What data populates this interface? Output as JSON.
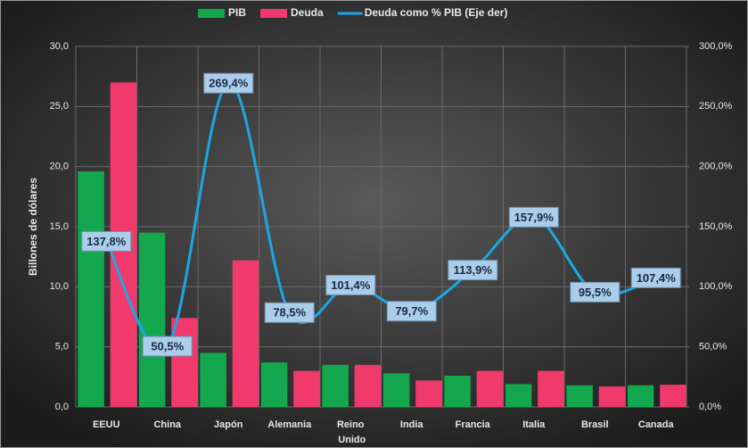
{
  "chart_data": {
    "type": "bar-line",
    "ylabel": "Billones de dólares",
    "categories": [
      "EEUU",
      "China",
      "Japón",
      "Alemania",
      "Reino Unido",
      "India",
      "Francia",
      "Italia",
      "Brasil",
      "Canada"
    ],
    "series": [
      {
        "name": "PIB",
        "color": "#13a84e",
        "values": [
          19.6,
          14.5,
          4.5,
          3.7,
          3.5,
          2.8,
          2.6,
          1.9,
          1.8,
          1.8
        ]
      },
      {
        "name": "Deuda",
        "color": "#f03a6c",
        "values": [
          27.0,
          7.4,
          12.2,
          3.0,
          3.5,
          2.2,
          3.0,
          3.0,
          1.7,
          1.85
        ]
      },
      {
        "name": "Deuda como % PIB (Eje der)",
        "color": "#1ba8e2",
        "axis": "y2",
        "type": "line",
        "values": [
          137.8,
          50.5,
          269.4,
          78.5,
          101.4,
          79.7,
          113.9,
          157.9,
          95.5,
          107.4
        ],
        "value_labels": [
          "137,8%",
          "50,5%",
          "269,4%",
          "78,5%",
          "101,4%",
          "79,7%",
          "113,9%",
          "157,9%",
          "95,5%",
          "107,4%"
        ]
      }
    ],
    "ylim": [
      0,
      30
    ],
    "yticks": [
      {
        "value": 0,
        "label": "0,0"
      },
      {
        "value": 5,
        "label": "5,0"
      },
      {
        "value": 10,
        "label": "10,0"
      },
      {
        "value": 15,
        "label": "15,0"
      },
      {
        "value": 20,
        "label": "20,0"
      },
      {
        "value": 25,
        "label": "25,0"
      },
      {
        "value": 30,
        "label": "30,0"
      }
    ],
    "y2lim": [
      0,
      300
    ],
    "y2ticks": [
      {
        "value": 0,
        "label": "0,0%"
      },
      {
        "value": 50,
        "label": "50,0%"
      },
      {
        "value": 100,
        "label": "100,0%"
      },
      {
        "value": 150,
        "label": "150,0%"
      },
      {
        "value": 200,
        "label": "200,0%"
      },
      {
        "value": 250,
        "label": "250,0%"
      },
      {
        "value": 300,
        "label": "300,0%"
      }
    ],
    "grid": true,
    "legend": "top"
  }
}
